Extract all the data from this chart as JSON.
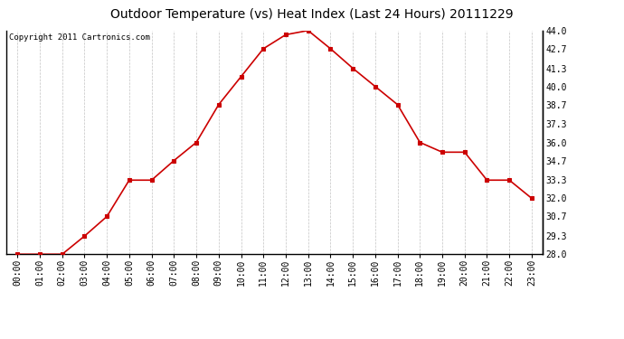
{
  "title": "Outdoor Temperature (vs) Heat Index (Last 24 Hours) 20111229",
  "copyright_text": "Copyright 2011 Cartronics.com",
  "x_labels": [
    "00:00",
    "01:00",
    "02:00",
    "03:00",
    "04:00",
    "05:00",
    "06:00",
    "07:00",
    "08:00",
    "09:00",
    "10:00",
    "11:00",
    "12:00",
    "13:00",
    "14:00",
    "15:00",
    "16:00",
    "17:00",
    "18:00",
    "19:00",
    "20:00",
    "21:00",
    "22:00",
    "23:00"
  ],
  "y_values": [
    28.0,
    28.0,
    28.0,
    29.3,
    30.7,
    33.3,
    33.3,
    34.7,
    36.0,
    38.7,
    40.7,
    42.7,
    43.7,
    44.0,
    42.7,
    41.3,
    40.0,
    38.7,
    36.0,
    35.3,
    35.3,
    33.3,
    33.3,
    32.0
  ],
  "line_color": "#cc0000",
  "marker": "s",
  "marker_size": 3,
  "marker_color": "#cc0000",
  "bg_color": "#ffffff",
  "plot_bg_color": "#ffffff",
  "grid_color": "#aaaaaa",
  "ylim": [
    28.0,
    44.0
  ],
  "yticks": [
    28.0,
    29.3,
    30.7,
    32.0,
    33.3,
    34.7,
    36.0,
    37.3,
    38.7,
    40.0,
    41.3,
    42.7,
    44.0
  ],
  "title_fontsize": 10,
  "copyright_fontsize": 6.5,
  "tick_fontsize": 7,
  "line_width": 1.2
}
